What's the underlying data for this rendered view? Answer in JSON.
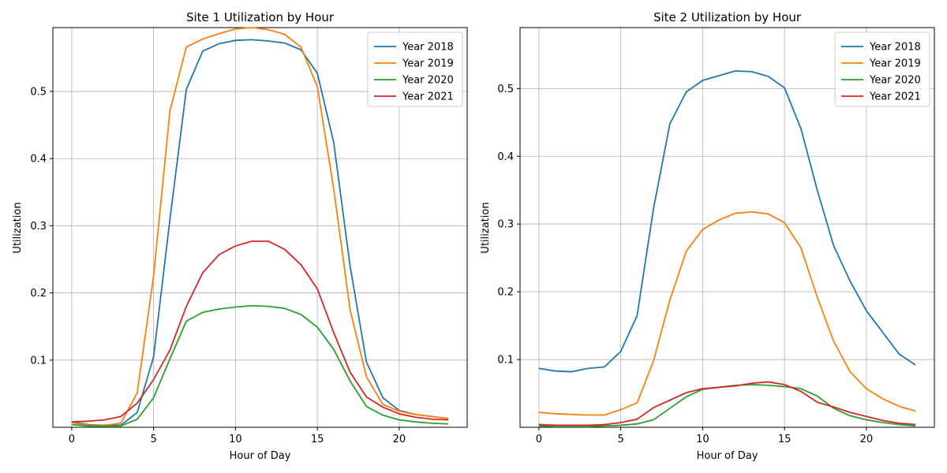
{
  "chart_data": [
    {
      "type": "line",
      "title": "Site 1 Utilization by Hour",
      "xlabel": "Hour of Day",
      "ylabel": "Utilization",
      "xlim": [
        -1.15,
        24.15
      ],
      "ylim": [
        0.0,
        0.595
      ],
      "xticks": [
        0,
        5,
        10,
        15,
        20
      ],
      "yticks": [
        0.1,
        0.2,
        0.3,
        0.4,
        0.5
      ],
      "grid": true,
      "legend_position": "top-right",
      "x": [
        0,
        1,
        2,
        3,
        4,
        5,
        6,
        7,
        8,
        9,
        10,
        11,
        12,
        13,
        14,
        15,
        16,
        17,
        18,
        19,
        20,
        21,
        22,
        23
      ],
      "series": [
        {
          "name": "Year 2018",
          "color": "#1f77b4",
          "values": [
            0.008,
            0.004,
            0.003,
            0.003,
            0.022,
            0.105,
            0.31,
            0.503,
            0.56,
            0.571,
            0.576,
            0.577,
            0.575,
            0.572,
            0.562,
            0.527,
            0.424,
            0.24,
            0.097,
            0.044,
            0.025,
            0.019,
            0.016,
            0.013
          ]
        },
        {
          "name": "Year 2019",
          "color": "#ff7f0e",
          "values": [
            0.007,
            0.003,
            0.003,
            0.006,
            0.051,
            0.225,
            0.471,
            0.566,
            0.578,
            0.586,
            0.593,
            0.595,
            0.592,
            0.585,
            0.566,
            0.507,
            0.355,
            0.175,
            0.075,
            0.034,
            0.024,
            0.019,
            0.016,
            0.013
          ]
        },
        {
          "name": "Year 2020",
          "color": "#2ca02c",
          "values": [
            0.004,
            0.002,
            0.002,
            0.002,
            0.012,
            0.044,
            0.102,
            0.158,
            0.171,
            0.176,
            0.179,
            0.181,
            0.18,
            0.177,
            0.168,
            0.149,
            0.116,
            0.069,
            0.031,
            0.018,
            0.011,
            0.008,
            0.006,
            0.005
          ]
        },
        {
          "name": "Year 2021",
          "color": "#d62728",
          "values": [
            0.008,
            0.009,
            0.011,
            0.016,
            0.036,
            0.071,
            0.115,
            0.18,
            0.23,
            0.257,
            0.27,
            0.277,
            0.277,
            0.265,
            0.242,
            0.206,
            0.141,
            0.082,
            0.045,
            0.03,
            0.02,
            0.015,
            0.012,
            0.011
          ]
        }
      ]
    },
    {
      "type": "line",
      "title": "Site 2 Utilization by Hour",
      "xlabel": "Hour of Day",
      "ylabel": "Utilization",
      "xlim": [
        -1.15,
        24.15
      ],
      "ylim": [
        0.0,
        0.59
      ],
      "xticks": [
        0,
        5,
        10,
        15,
        20
      ],
      "yticks": [
        0.1,
        0.2,
        0.3,
        0.4,
        0.5
      ],
      "grid": true,
      "legend_position": "top-right",
      "x": [
        0,
        1,
        2,
        3,
        4,
        5,
        6,
        7,
        8,
        9,
        10,
        11,
        12,
        13,
        14,
        15,
        16,
        17,
        18,
        19,
        20,
        21,
        22,
        23
      ],
      "series": [
        {
          "name": "Year 2018",
          "color": "#1f77b4",
          "values": [
            0.087,
            0.083,
            0.082,
            0.087,
            0.089,
            0.112,
            0.165,
            0.323,
            0.448,
            0.495,
            0.512,
            0.519,
            0.526,
            0.525,
            0.518,
            0.501,
            0.441,
            0.35,
            0.268,
            0.216,
            0.172,
            0.14,
            0.108,
            0.092
          ]
        },
        {
          "name": "Year 2019",
          "color": "#ff7f0e",
          "values": [
            0.022,
            0.02,
            0.019,
            0.018,
            0.018,
            0.026,
            0.036,
            0.098,
            0.188,
            0.26,
            0.292,
            0.306,
            0.316,
            0.318,
            0.315,
            0.302,
            0.265,
            0.192,
            0.127,
            0.082,
            0.057,
            0.042,
            0.031,
            0.024
          ]
        },
        {
          "name": "Year 2020",
          "color": "#2ca02c",
          "values": [
            0.002,
            0.001,
            0.001,
            0.001,
            0.002,
            0.003,
            0.005,
            0.011,
            0.028,
            0.045,
            0.056,
            0.059,
            0.062,
            0.063,
            0.062,
            0.06,
            0.057,
            0.046,
            0.028,
            0.017,
            0.011,
            0.007,
            0.004,
            0.002
          ]
        },
        {
          "name": "Year 2021",
          "color": "#d62728",
          "values": [
            0.004,
            0.003,
            0.003,
            0.003,
            0.004,
            0.007,
            0.012,
            0.029,
            0.04,
            0.051,
            0.057,
            0.059,
            0.061,
            0.065,
            0.067,
            0.063,
            0.053,
            0.037,
            0.03,
            0.022,
            0.016,
            0.01,
            0.006,
            0.004
          ]
        }
      ]
    }
  ]
}
